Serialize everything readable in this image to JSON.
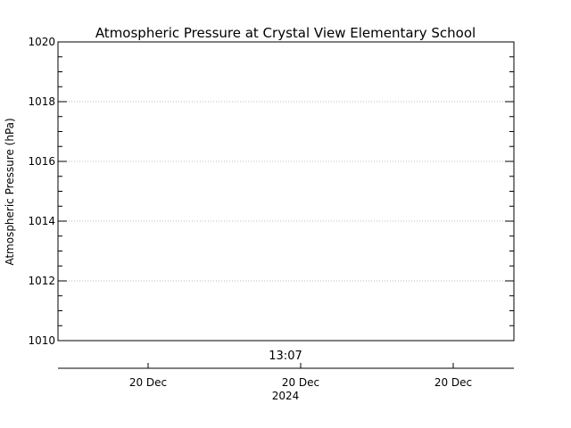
{
  "chart_data": {
    "type": "line",
    "title": "Atmospheric Pressure at Crystal View Elementary School",
    "ylabel": "Atmospheric Pressure (hPa)",
    "xlabel": "",
    "ylim": [
      1010,
      1020
    ],
    "y_major_ticks": [
      1010,
      1012,
      1014,
      1016,
      1018,
      1020
    ],
    "y_minor_step": 0.5,
    "grid": true,
    "series": [],
    "time_label": "13:07",
    "x_ticks": [
      {
        "label": "20 Dec"
      },
      {
        "label": "20 Dec"
      },
      {
        "label": "20 Dec"
      }
    ],
    "year_label": "2024"
  }
}
